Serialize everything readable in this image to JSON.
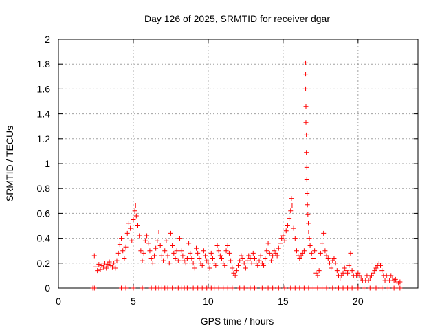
{
  "chart_data": {
    "type": "scatter",
    "title": "Day 126 of 2025, SRMTID for receiver dgar",
    "xlabel": "GPS time / hours",
    "ylabel": "SRMTID / TECUs",
    "xlim": [
      0,
      24
    ],
    "ylim": [
      0,
      2
    ],
    "xticks": [
      0,
      5,
      10,
      15,
      20
    ],
    "xtick_labels": [
      "0",
      "5",
      "10",
      "15",
      "20"
    ],
    "yticks": [
      0,
      0.2,
      0.4,
      0.6,
      0.8,
      1,
      1.2,
      1.4,
      1.6,
      1.8,
      2
    ],
    "ytick_labels": [
      "0",
      "0.2",
      "0.4",
      "0.6",
      "0.8",
      "1",
      "1.2",
      "1.4",
      "1.6",
      "1.8",
      "2"
    ],
    "grid": true,
    "marker": "plus",
    "color": "#ff0000",
    "series": [
      {
        "name": "SRMTID",
        "points": [
          [
            2.4,
            0.26
          ],
          [
            2.5,
            0.17
          ],
          [
            2.6,
            0.14
          ],
          [
            2.7,
            0.19
          ],
          [
            2.8,
            0.15
          ],
          [
            2.9,
            0.18
          ],
          [
            3.0,
            0.17
          ],
          [
            3.1,
            0.2
          ],
          [
            3.2,
            0.16
          ],
          [
            3.3,
            0.19
          ],
          [
            3.4,
            0.21
          ],
          [
            3.5,
            0.18
          ],
          [
            3.6,
            0.17
          ],
          [
            3.7,
            0.2
          ],
          [
            3.8,
            0.16
          ],
          [
            3.9,
            0.22
          ],
          [
            4.0,
            0.28
          ],
          [
            4.1,
            0.35
          ],
          [
            4.2,
            0.4
          ],
          [
            4.3,
            0.3
          ],
          [
            4.4,
            0.24
          ],
          [
            4.5,
            0.33
          ],
          [
            4.6,
            0.44
          ],
          [
            4.7,
            0.52
          ],
          [
            4.8,
            0.48
          ],
          [
            4.9,
            0.38
          ],
          [
            5.0,
            0.55
          ],
          [
            5.1,
            0.62
          ],
          [
            5.15,
            0.66
          ],
          [
            5.2,
            0.58
          ],
          [
            5.3,
            0.5
          ],
          [
            5.4,
            0.42
          ],
          [
            5.5,
            0.3
          ],
          [
            5.6,
            0.22
          ],
          [
            5.7,
            0.28
          ],
          [
            5.8,
            0.38
          ],
          [
            5.9,
            0.42
          ],
          [
            6.0,
            0.36
          ],
          [
            6.1,
            0.3
          ],
          [
            6.2,
            0.24
          ],
          [
            6.3,
            0.2
          ],
          [
            6.4,
            0.26
          ],
          [
            6.5,
            0.32
          ],
          [
            6.6,
            0.38
          ],
          [
            6.7,
            0.45
          ],
          [
            6.8,
            0.34
          ],
          [
            6.9,
            0.26
          ],
          [
            7.0,
            0.22
          ],
          [
            7.1,
            0.3
          ],
          [
            7.2,
            0.38
          ],
          [
            7.3,
            0.26
          ],
          [
            7.4,
            0.2
          ],
          [
            7.5,
            0.44
          ],
          [
            7.6,
            0.34
          ],
          [
            7.7,
            0.28
          ],
          [
            7.8,
            0.24
          ],
          [
            7.9,
            0.3
          ],
          [
            8.0,
            0.22
          ],
          [
            8.1,
            0.4
          ],
          [
            8.2,
            0.3
          ],
          [
            8.3,
            0.26
          ],
          [
            8.4,
            0.22
          ],
          [
            8.5,
            0.2
          ],
          [
            8.6,
            0.24
          ],
          [
            8.7,
            0.36
          ],
          [
            8.8,
            0.28
          ],
          [
            8.9,
            0.24
          ],
          [
            9.0,
            0.2
          ],
          [
            9.1,
            0.16
          ],
          [
            9.2,
            0.32
          ],
          [
            9.3,
            0.28
          ],
          [
            9.4,
            0.24
          ],
          [
            9.5,
            0.2
          ],
          [
            9.6,
            0.18
          ],
          [
            9.7,
            0.3
          ],
          [
            9.8,
            0.26
          ],
          [
            9.9,
            0.22
          ],
          [
            10.0,
            0.2
          ],
          [
            10.1,
            0.16
          ],
          [
            10.2,
            0.28
          ],
          [
            10.3,
            0.24
          ],
          [
            10.4,
            0.2
          ],
          [
            10.5,
            0.18
          ],
          [
            10.6,
            0.34
          ],
          [
            10.7,
            0.3
          ],
          [
            10.8,
            0.26
          ],
          [
            10.9,
            0.24
          ],
          [
            11.0,
            0.2
          ],
          [
            11.1,
            0.18
          ],
          [
            11.2,
            0.3
          ],
          [
            11.3,
            0.34
          ],
          [
            11.4,
            0.28
          ],
          [
            11.5,
            0.22
          ],
          [
            11.6,
            0.16
          ],
          [
            11.7,
            0.12
          ],
          [
            11.8,
            0.1
          ],
          [
            11.9,
            0.14
          ],
          [
            12.0,
            0.18
          ],
          [
            12.1,
            0.22
          ],
          [
            12.2,
            0.26
          ],
          [
            12.3,
            0.24
          ],
          [
            12.4,
            0.2
          ],
          [
            12.5,
            0.16
          ],
          [
            12.6,
            0.22
          ],
          [
            12.7,
            0.26
          ],
          [
            12.8,
            0.24
          ],
          [
            12.9,
            0.2
          ],
          [
            13.0,
            0.28
          ],
          [
            13.1,
            0.24
          ],
          [
            13.2,
            0.2
          ],
          [
            13.3,
            0.18
          ],
          [
            13.4,
            0.22
          ],
          [
            13.5,
            0.26
          ],
          [
            13.6,
            0.2
          ],
          [
            13.7,
            0.18
          ],
          [
            13.8,
            0.24
          ],
          [
            13.9,
            0.3
          ],
          [
            14.0,
            0.36
          ],
          [
            14.1,
            0.28
          ],
          [
            14.2,
            0.22
          ],
          [
            14.3,
            0.26
          ],
          [
            14.4,
            0.3
          ],
          [
            14.5,
            0.28
          ],
          [
            14.6,
            0.26
          ],
          [
            14.7,
            0.32
          ],
          [
            14.8,
            0.36
          ],
          [
            14.9,
            0.4
          ],
          [
            15.0,
            0.42
          ],
          [
            15.1,
            0.38
          ],
          [
            15.2,
            0.46
          ],
          [
            15.3,
            0.5
          ],
          [
            15.4,
            0.56
          ],
          [
            15.5,
            0.62
          ],
          [
            15.55,
            0.72
          ],
          [
            15.6,
            0.66
          ],
          [
            15.7,
            0.48
          ],
          [
            15.8,
            0.4
          ],
          [
            15.9,
            0.3
          ],
          [
            16.0,
            0.26
          ],
          [
            16.1,
            0.24
          ],
          [
            16.2,
            0.26
          ],
          [
            16.3,
            0.28
          ],
          [
            16.4,
            0.3
          ],
          [
            16.5,
            1.81
          ],
          [
            16.5,
            1.72
          ],
          [
            16.5,
            1.6
          ],
          [
            16.52,
            1.46
          ],
          [
            16.52,
            1.33
          ],
          [
            16.55,
            1.23
          ],
          [
            16.55,
            1.09
          ],
          [
            16.58,
            0.97
          ],
          [
            16.58,
            0.87
          ],
          [
            16.6,
            0.76
          ],
          [
            16.62,
            0.67
          ],
          [
            16.65,
            0.59
          ],
          [
            16.68,
            0.52
          ],
          [
            16.7,
            0.45
          ],
          [
            16.75,
            0.4
          ],
          [
            16.8,
            0.34
          ],
          [
            16.9,
            0.28
          ],
          [
            17.0,
            0.24
          ],
          [
            17.1,
            0.3
          ],
          [
            17.2,
            0.12
          ],
          [
            17.3,
            0.1
          ],
          [
            17.4,
            0.14
          ],
          [
            17.5,
            0.28
          ],
          [
            17.6,
            0.36
          ],
          [
            17.7,
            0.44
          ],
          [
            17.8,
            0.3
          ],
          [
            17.9,
            0.26
          ],
          [
            18.0,
            0.24
          ],
          [
            18.1,
            0.2
          ],
          [
            18.2,
            0.16
          ],
          [
            18.3,
            0.22
          ],
          [
            18.4,
            0.24
          ],
          [
            18.5,
            0.2
          ],
          [
            18.6,
            0.14
          ],
          [
            18.7,
            0.1
          ],
          [
            18.8,
            0.08
          ],
          [
            18.9,
            0.1
          ],
          [
            19.0,
            0.12
          ],
          [
            19.1,
            0.16
          ],
          [
            19.2,
            0.14
          ],
          [
            19.3,
            0.12
          ],
          [
            19.4,
            0.18
          ],
          [
            19.5,
            0.28
          ],
          [
            19.6,
            0.14
          ],
          [
            19.7,
            0.1
          ],
          [
            19.8,
            0.08
          ],
          [
            19.9,
            0.1
          ],
          [
            20.0,
            0.12
          ],
          [
            20.1,
            0.1
          ],
          [
            20.2,
            0.08
          ],
          [
            20.3,
            0.06
          ],
          [
            20.4,
            0.08
          ],
          [
            20.5,
            0.06
          ],
          [
            20.6,
            0.1
          ],
          [
            20.7,
            0.06
          ],
          [
            20.8,
            0.08
          ],
          [
            20.9,
            0.1
          ],
          [
            21.0,
            0.12
          ],
          [
            21.1,
            0.14
          ],
          [
            21.2,
            0.16
          ],
          [
            21.3,
            0.18
          ],
          [
            21.4,
            0.2
          ],
          [
            21.5,
            0.18
          ],
          [
            21.6,
            0.14
          ],
          [
            21.7,
            0.1
          ],
          [
            21.8,
            0.06
          ],
          [
            21.9,
            0.1
          ],
          [
            22.0,
            0.08
          ],
          [
            22.1,
            0.06
          ],
          [
            22.2,
            0.1
          ],
          [
            22.3,
            0.08
          ],
          [
            22.4,
            0.06
          ],
          [
            22.5,
            0.07
          ],
          [
            22.6,
            0.05
          ],
          [
            22.7,
            0.04
          ],
          [
            22.8,
            0.05
          ],
          [
            2.3,
            0.0
          ],
          [
            2.4,
            0.0
          ],
          [
            4.2,
            0.0
          ],
          [
            4.5,
            0.0
          ],
          [
            5.0,
            0.0
          ],
          [
            5.6,
            0.0
          ],
          [
            6.2,
            0.0
          ],
          [
            6.5,
            0.0
          ],
          [
            6.7,
            0.0
          ],
          [
            6.9,
            0.0
          ],
          [
            7.1,
            0.0
          ],
          [
            7.3,
            0.0
          ],
          [
            7.6,
            0.0
          ],
          [
            8.0,
            0.0
          ],
          [
            8.2,
            0.0
          ],
          [
            8.4,
            0.0
          ],
          [
            8.6,
            0.0
          ],
          [
            9.0,
            0.0
          ],
          [
            9.3,
            0.0
          ],
          [
            9.6,
            0.0
          ],
          [
            9.9,
            0.0
          ],
          [
            10.2,
            0.0
          ],
          [
            10.4,
            0.0
          ],
          [
            10.7,
            0.0
          ],
          [
            11.0,
            0.0
          ],
          [
            11.3,
            0.0
          ],
          [
            11.6,
            0.0
          ],
          [
            12.1,
            0.0
          ],
          [
            12.4,
            0.0
          ],
          [
            12.8,
            0.0
          ],
          [
            13.1,
            0.0
          ],
          [
            13.6,
            0.0
          ],
          [
            14.0,
            0.0
          ],
          [
            14.3,
            0.0
          ],
          [
            14.7,
            0.0
          ],
          [
            15.1,
            0.0
          ],
          [
            15.5,
            0.0
          ],
          [
            15.8,
            0.0
          ],
          [
            16.1,
            0.0
          ],
          [
            16.4,
            0.0
          ],
          [
            16.7,
            0.0
          ],
          [
            17.0,
            0.0
          ],
          [
            17.3,
            0.0
          ],
          [
            17.6,
            0.0
          ],
          [
            17.9,
            0.0
          ],
          [
            18.3,
            0.0
          ],
          [
            18.7,
            0.0
          ],
          [
            19.0,
            0.0
          ],
          [
            19.3,
            0.0
          ],
          [
            19.6,
            0.0
          ],
          [
            20.0,
            0.0
          ],
          [
            20.4,
            0.0
          ],
          [
            20.8,
            0.0
          ],
          [
            21.2,
            0.0
          ],
          [
            21.6,
            0.0
          ],
          [
            22.0,
            0.0
          ],
          [
            22.4,
            0.0
          ],
          [
            22.8,
            0.0
          ]
        ]
      }
    ]
  }
}
